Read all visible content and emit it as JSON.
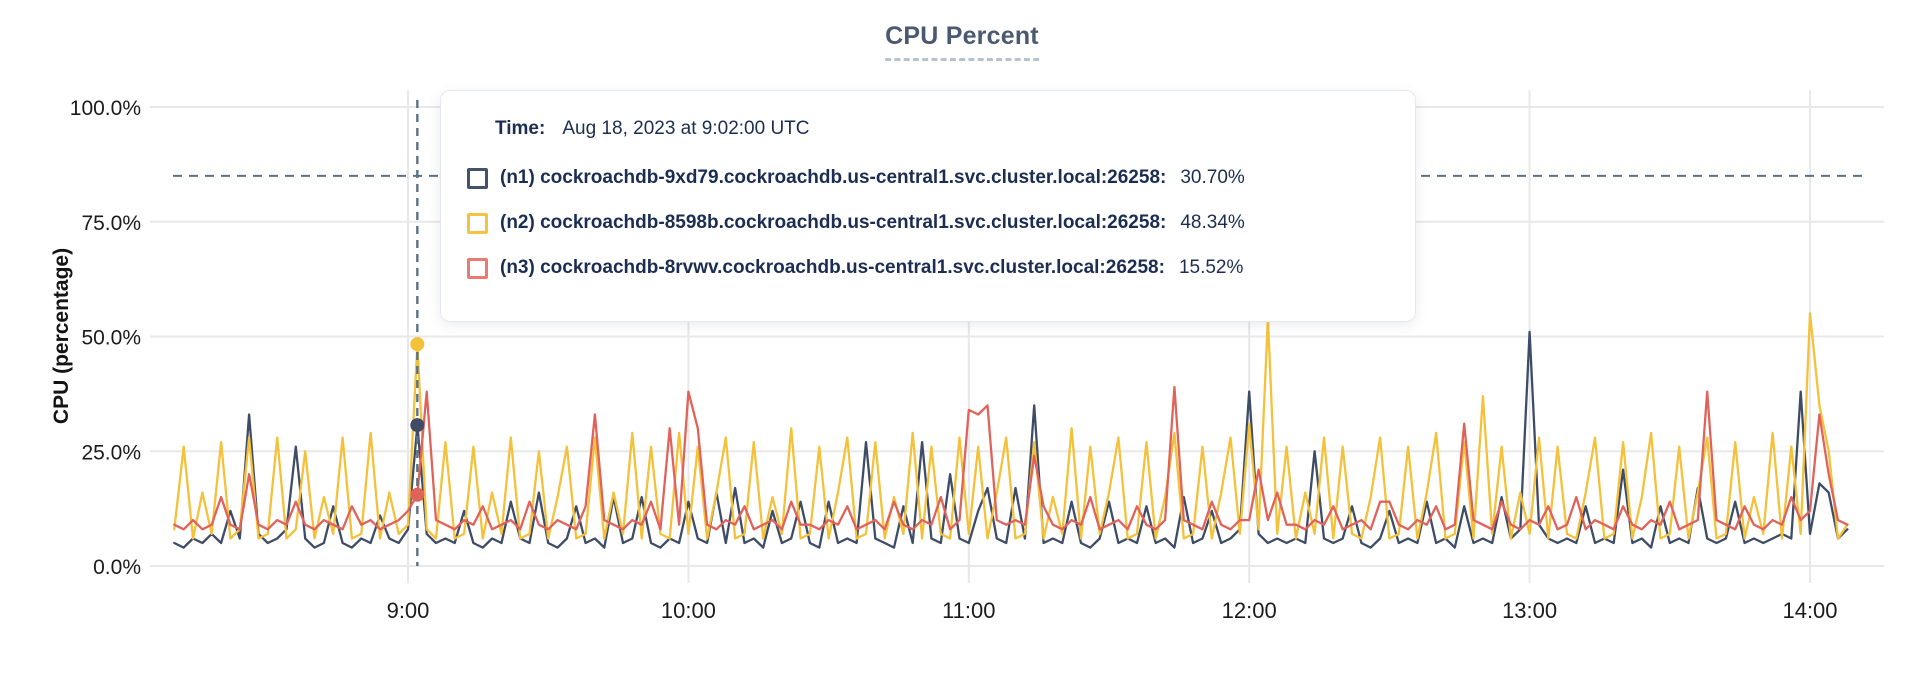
{
  "chart": {
    "title": "CPU Percent"
  },
  "axes": {
    "y_title": "CPU (percentage)"
  },
  "colors": {
    "grid": "#e8e8e8",
    "crosshair": "#5a7183",
    "title_text": "#4a5970",
    "axis_text": "#1b1b1b",
    "tooltip_text": "#1b2d52"
  },
  "tooltip": {
    "time_label": "Time:",
    "time_value": "Aug 18, 2023 at 9:02:00 UTC",
    "series": [
      {
        "label": "(n1) cockroachdb-9xd79.cockroachdb.us-central1.svc.cluster.local:26258:",
        "value": "30.70%",
        "color": "#3e4c66",
        "swatch_color": "#44536d"
      },
      {
        "label": "(n2) cockroachdb-8598b.cockroachdb.us-central1.svc.cluster.local:26258:",
        "value": "48.34%",
        "color": "#f4c13b",
        "swatch_color": "#f5c342"
      },
      {
        "label": "(n3) cockroachdb-8rvwv.cockroachdb.us-central1.svc.cluster.local:26258:",
        "value": "15.52%",
        "color": "#e0635b",
        "swatch_color": "#ea7b73"
      }
    ]
  },
  "chart_data": {
    "type": "line",
    "title": "CPU Percent",
    "xlabel": "",
    "ylabel": "CPU (percentage)",
    "ylim": [
      0,
      100
    ],
    "grid": true,
    "legend_position": "tooltip-overlay",
    "x_unit": "hour-of-day",
    "x_start_hour": 8.1667,
    "x_step_hours": 0.0333333,
    "y_ticks": [
      {
        "value": 0,
        "label": "0.0%"
      },
      {
        "value": 25,
        "label": "25.0%"
      },
      {
        "value": 50,
        "label": "50.0%"
      },
      {
        "value": 75,
        "label": "75.0%"
      },
      {
        "value": 100,
        "label": "100.0%"
      }
    ],
    "x_ticks": [
      {
        "hour": 9,
        "label": "9:00"
      },
      {
        "hour": 10,
        "label": "10:00"
      },
      {
        "hour": 11,
        "label": "11:00"
      },
      {
        "hour": 12,
        "label": "12:00"
      },
      {
        "hour": 13,
        "label": "13:00"
      },
      {
        "hour": 14,
        "label": "14:00"
      }
    ],
    "hover": {
      "time_label": "Aug 18, 2023 at 9:02:00 UTC",
      "x_hour": 9.0333,
      "crosshair_y_value": 85,
      "point_values": [
        30.7,
        48.34,
        15.52
      ]
    },
    "series": [
      {
        "id": "n1",
        "name": "(n1) cockroachdb-9xd79.cockroachdb.us-central1.svc.cluster.local:26258",
        "color": "#3e4c66",
        "values": [
          5,
          4,
          6,
          5,
          7,
          5,
          12,
          6,
          33,
          7,
          5,
          6,
          8,
          26,
          6,
          4,
          5,
          13,
          5,
          4,
          6,
          5,
          11,
          6,
          5,
          8,
          30.7,
          7,
          5,
          6,
          5,
          12,
          5,
          4,
          6,
          5,
          14,
          6,
          5,
          16,
          5,
          4,
          6,
          13,
          5,
          6,
          4,
          15,
          5,
          6,
          15,
          5,
          4,
          6,
          5,
          14,
          6,
          5,
          16,
          5,
          17,
          5,
          6,
          4,
          12,
          5,
          6,
          14,
          5,
          4,
          14,
          5,
          6,
          5,
          27,
          6,
          5,
          4,
          13,
          5,
          27,
          6,
          5,
          20,
          6,
          5,
          12,
          17,
          6,
          5,
          17,
          6,
          35,
          5,
          6,
          5,
          14,
          5,
          4,
          6,
          14,
          5,
          6,
          5,
          13,
          5,
          6,
          4,
          15,
          5,
          6,
          12,
          5,
          6,
          8,
          38,
          7,
          5,
          6,
          5,
          6,
          5,
          25,
          6,
          5,
          6,
          13,
          5,
          4,
          6,
          12,
          5,
          6,
          5,
          14,
          5,
          6,
          4,
          13,
          5,
          6,
          5,
          15,
          6,
          8,
          51,
          9,
          6,
          5,
          6,
          5,
          13,
          5,
          6,
          5,
          21,
          5,
          6,
          4,
          13,
          5,
          6,
          5,
          17,
          6,
          5,
          6,
          14,
          5,
          6,
          5,
          6,
          7,
          6,
          38,
          7,
          18,
          16,
          6,
          8
        ]
      },
      {
        "id": "n2",
        "name": "(n2) cockroachdb-8598b.cockroachdb.us-central1.svc.cluster.local:26258",
        "color": "#f4c13b",
        "values": [
          8,
          26,
          6,
          16,
          7,
          27,
          6,
          8,
          28,
          6,
          7,
          28,
          6,
          8,
          25,
          6,
          15,
          7,
          28,
          6,
          7,
          29,
          6,
          16,
          7,
          9,
          48.34,
          8,
          6,
          27,
          6,
          7,
          26,
          6,
          16,
          7,
          28,
          6,
          7,
          25,
          6,
          15,
          26,
          6,
          7,
          28,
          6,
          16,
          7,
          29,
          6,
          26,
          7,
          6,
          29,
          7,
          26,
          6,
          16,
          28,
          6,
          7,
          27,
          6,
          15,
          7,
          30,
          6,
          7,
          26,
          6,
          16,
          28,
          6,
          7,
          27,
          6,
          15,
          7,
          29,
          6,
          26,
          7,
          6,
          28,
          7,
          26,
          6,
          16,
          28,
          6,
          7,
          27,
          6,
          15,
          7,
          30,
          6,
          26,
          7,
          16,
          28,
          6,
          7,
          27,
          6,
          15,
          29,
          6,
          7,
          26,
          6,
          16,
          28,
          7,
          31,
          8,
          54,
          7,
          26,
          6,
          16,
          7,
          28,
          6,
          26,
          7,
          6,
          15,
          28,
          6,
          7,
          26,
          6,
          16,
          29,
          6,
          7,
          27,
          6,
          37,
          7,
          26,
          6,
          16,
          7,
          28,
          6,
          26,
          7,
          6,
          16,
          28,
          6,
          7,
          27,
          6,
          15,
          29,
          6,
          7,
          26,
          6,
          16,
          28,
          6,
          7,
          27,
          6,
          15,
          7,
          29,
          6,
          26,
          7,
          55,
          35,
          25,
          6,
          9
        ]
      },
      {
        "id": "n3",
        "name": "(n3) cockroachdb-8rvwv.cockroachdb.us-central1.svc.cluster.local:26258",
        "color": "#e0635b",
        "values": [
          9,
          8,
          10,
          8,
          9,
          15,
          9,
          8,
          20,
          9,
          8,
          10,
          9,
          14,
          9,
          8,
          10,
          9,
          8,
          13,
          9,
          10,
          8,
          9,
          10,
          12,
          15.52,
          38,
          10,
          9,
          8,
          10,
          9,
          13,
          8,
          9,
          10,
          8,
          14,
          9,
          8,
          10,
          9,
          8,
          13,
          33,
          10,
          9,
          8,
          10,
          9,
          14,
          8,
          30,
          9,
          38,
          30,
          9,
          8,
          10,
          9,
          13,
          8,
          9,
          10,
          8,
          14,
          9,
          9,
          8,
          10,
          9,
          13,
          8,
          9,
          10,
          8,
          14,
          9,
          8,
          10,
          9,
          15,
          8,
          10,
          34,
          33,
          35,
          10,
          9,
          10,
          9,
          24,
          13,
          9,
          8,
          10,
          9,
          15,
          8,
          9,
          10,
          8,
          13,
          9,
          8,
          10,
          39,
          10,
          9,
          8,
          14,
          9,
          8,
          10,
          10,
          21,
          10,
          16,
          9,
          9,
          8,
          10,
          9,
          13,
          8,
          9,
          10,
          8,
          14,
          14,
          9,
          8,
          10,
          9,
          13,
          8,
          9,
          31,
          10,
          9,
          8,
          14,
          9,
          8,
          10,
          9,
          13,
          8,
          9,
          15,
          8,
          10,
          9,
          8,
          13,
          9,
          8,
          10,
          9,
          14,
          8,
          9,
          10,
          38,
          10,
          9,
          8,
          13,
          9,
          8,
          10,
          9,
          15,
          10,
          12,
          33,
          20,
          10,
          9
        ]
      }
    ]
  }
}
